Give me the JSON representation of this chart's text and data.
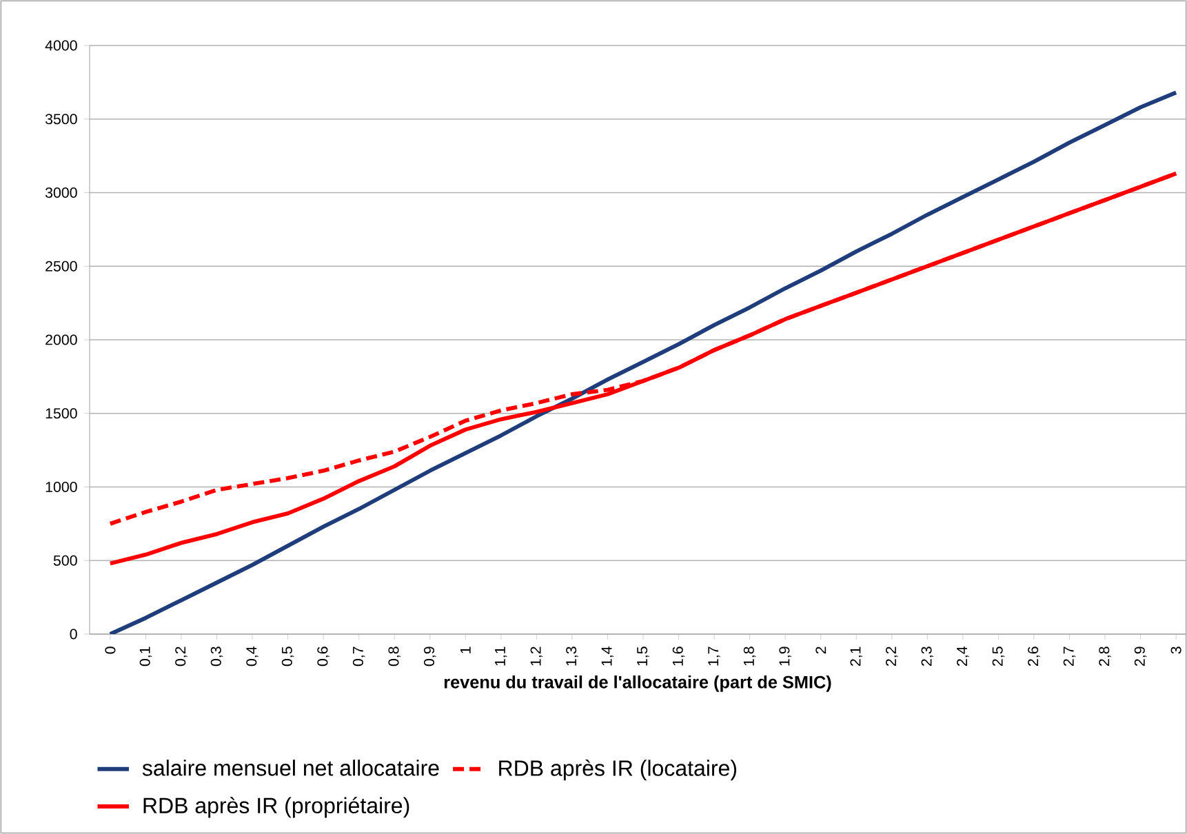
{
  "chart_data": {
    "type": "line",
    "xlabel": "revenu du travail de l'allocataire (part de SMIC)",
    "categories": [
      "0",
      "0,1",
      "0,2",
      "0,3",
      "0,4",
      "0,5",
      "0,6",
      "0,7",
      "0,8",
      "0,9",
      "1",
      "1,1",
      "1,2",
      "1,3",
      "1,4",
      "1,5",
      "1,6",
      "1,7",
      "1,8",
      "1,9",
      "2",
      "2,1",
      "2,2",
      "2,3",
      "2,4",
      "2,5",
      "2,6",
      "2,7",
      "2,8",
      "2,9",
      "3"
    ],
    "ylim": [
      0,
      4000
    ],
    "yticks": [
      0,
      500,
      1000,
      1500,
      2000,
      2500,
      3000,
      3500,
      4000
    ],
    "grid": "y",
    "legend": "bottom",
    "series": [
      {
        "name": "salaire mensuel net allocataire",
        "color": "#1f3d7a",
        "line_style": "solid",
        "values": [
          0,
          110,
          230,
          350,
          470,
          600,
          730,
          850,
          980,
          1110,
          1230,
          1350,
          1480,
          1600,
          1730,
          1850,
          1970,
          2100,
          2220,
          2350,
          2470,
          2600,
          2720,
          2850,
          2970,
          3090,
          3210,
          3340,
          3460,
          3580,
          3680
        ]
      },
      {
        "name": "RDB après IR (locataire)",
        "color": "#ff0000",
        "line_style": "dashed",
        "values": [
          750,
          830,
          900,
          980,
          1020,
          1060,
          1110,
          1180,
          1240,
          1340,
          1450,
          1520,
          1570,
          1630,
          1660,
          1720,
          1810,
          1930,
          2030,
          2140,
          2230,
          2320,
          2410,
          2500,
          2590,
          2680,
          2770,
          2860,
          2950,
          3040,
          3130
        ]
      },
      {
        "name": "RDB après IR (propriétaire)",
        "color": "#ff0000",
        "line_style": "solid",
        "values": [
          480,
          540,
          620,
          680,
          760,
          820,
          920,
          1040,
          1140,
          1280,
          1390,
          1460,
          1510,
          1570,
          1630,
          1720,
          1810,
          1930,
          2030,
          2140,
          2230,
          2320,
          2410,
          2500,
          2590,
          2680,
          2770,
          2860,
          2950,
          3040,
          3130
        ]
      }
    ]
  }
}
